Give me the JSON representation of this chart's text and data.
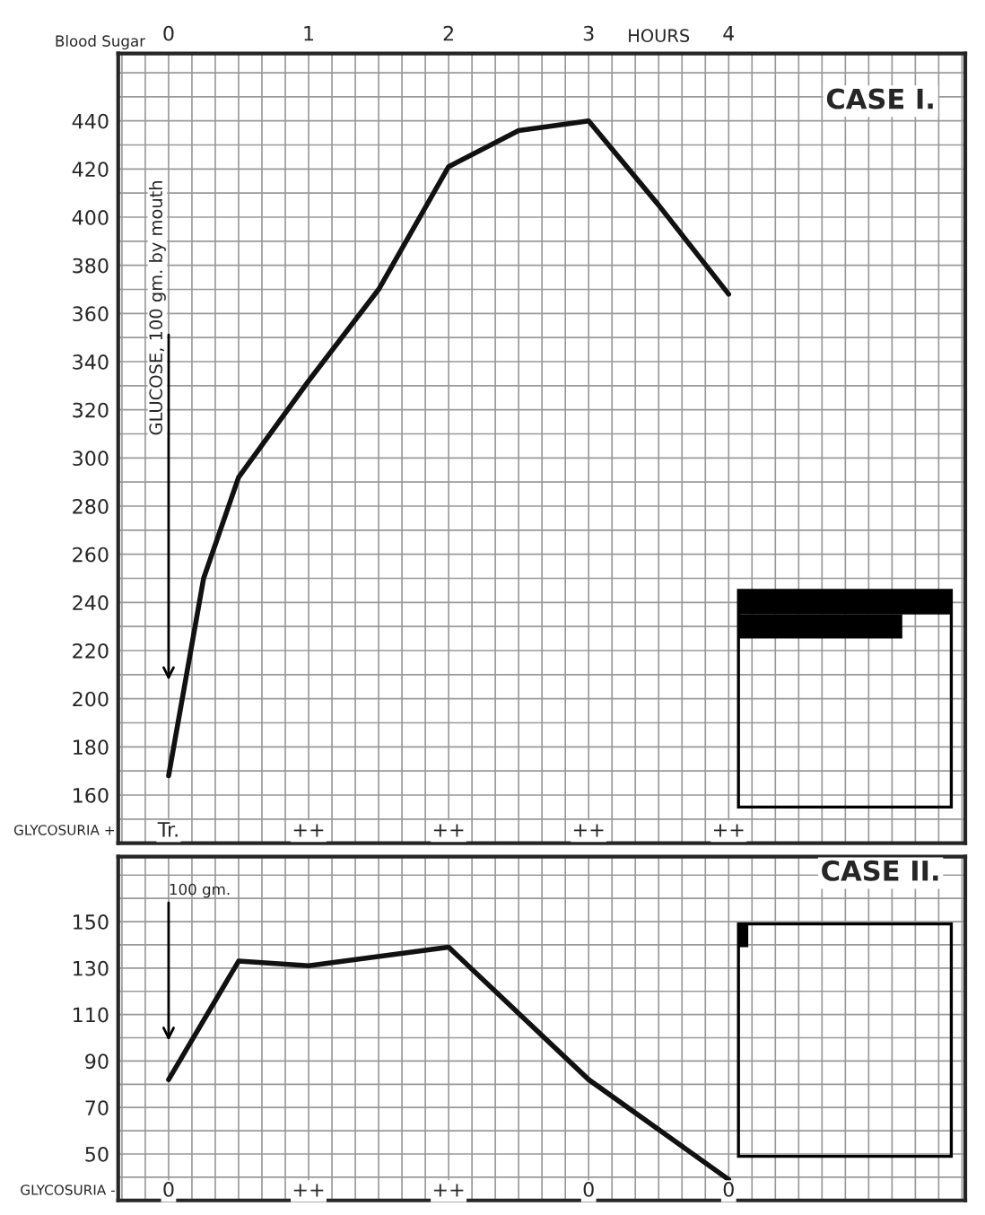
{
  "chart_data": [
    {
      "type": "line",
      "title": "CASE I.",
      "xlabel": "HOURS",
      "ylabel": "Blood Sugar",
      "x": [
        0,
        0.25,
        0.5,
        1,
        1.5,
        2,
        2.5,
        3,
        3.5,
        4
      ],
      "series": [
        {
          "color": "#111111",
          "values": [
            168,
            250,
            292,
            332,
            370,
            421,
            436,
            440,
            405,
            368
          ]
        }
      ],
      "xlim": [
        -0.36,
        5.69
      ],
      "ylim": [
        140,
        468
      ],
      "xticks": [
        0,
        1,
        2,
        3,
        4
      ],
      "yticks": [
        {
          "value": 150,
          "label": null
        },
        160,
        {
          "value": 170,
          "label": null
        },
        180,
        {
          "value": 190,
          "label": null
        },
        200,
        {
          "value": 210,
          "label": null
        },
        220,
        {
          "value": 230,
          "label": null
        },
        240,
        {
          "value": 250,
          "label": null
        },
        260,
        {
          "value": 270,
          "label": null
        },
        280,
        {
          "value": 290,
          "label": null
        },
        300,
        {
          "value": 310,
          "label": null
        },
        320,
        {
          "value": 330,
          "label": null
        },
        340,
        {
          "value": 350,
          "label": null
        },
        360,
        {
          "value": 370,
          "label": null
        },
        380,
        {
          "value": 390,
          "label": null
        },
        400,
        {
          "value": 410,
          "label": null
        },
        420,
        {
          "value": 430,
          "label": null
        },
        440,
        {
          "value": 450,
          "label": null
        },
        {
          "value": 460,
          "label": null
        }
      ],
      "grid": true,
      "marker": "none",
      "line_style": "solid",
      "annotations": [
        "GLUCOSE, 100 gm. by mouth",
        "GLYCOSURIA +",
        {
          "text": "Tr.",
          "x": 0,
          "y": 145
        },
        {
          "text": "++",
          "x": 1,
          "y": 145
        },
        {
          "text": "++",
          "x": 2,
          "y": 145
        },
        {
          "text": "++",
          "x": 3,
          "y": 145
        },
        {
          "text": "++",
          "x": 4,
          "y": 145
        }
      ]
    },
    {
      "type": "line",
      "title": "CASE II.",
      "x": [
        0,
        0.5,
        1,
        2,
        3,
        4
      ],
      "series": [
        {
          "color": "#111111",
          "values": [
            82,
            133,
            131,
            139,
            82,
            39
          ]
        }
      ],
      "xlim": [
        -0.36,
        5.69
      ],
      "ylim": [
        30,
        178
      ],
      "xticks": [
        0,
        1,
        2,
        3,
        4
      ],
      "yticks": [
        {
          "value": 40,
          "label": null
        },
        50,
        {
          "value": 60,
          "label": null
        },
        70,
        {
          "value": 80,
          "label": null
        },
        90,
        {
          "value": 100,
          "label": null
        },
        110,
        {
          "value": 120,
          "label": null
        },
        130,
        {
          "value": 140,
          "label": null
        },
        150,
        {
          "value": 160,
          "label": null
        },
        {
          "value": 170,
          "label": null
        }
      ],
      "tick_labels": "y",
      "grid": true,
      "marker": "none",
      "line_style": "solid",
      "annotations": [
        "100 gm.",
        "GLYCOSURIA -",
        {
          "text": "0",
          "x": 0,
          "y": 34
        },
        {
          "text": "++",
          "x": 1,
          "y": 34
        },
        {
          "text": "++",
          "x": 2,
          "y": 34
        },
        {
          "text": "0",
          "x": 3,
          "y": 34
        },
        {
          "text": "0",
          "x": 4,
          "y": 34
        }
      ]
    }
  ]
}
